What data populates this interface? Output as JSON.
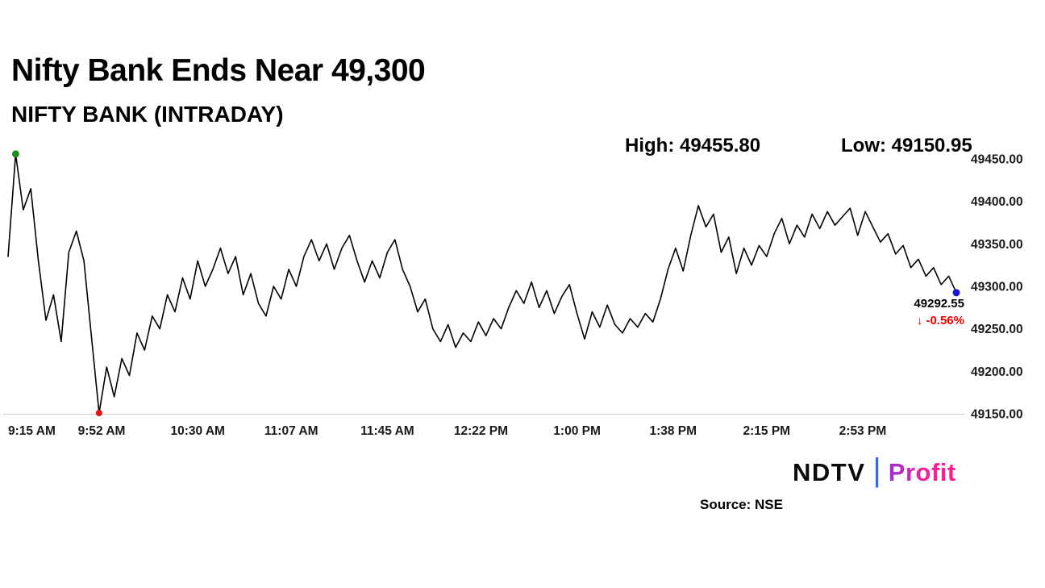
{
  "header": {
    "title": "Nifty Bank Ends Near 49,300",
    "subtitle": "NIFTY BANK (INTRADAY)",
    "high": "High: 49455.80",
    "low": "Low: 49150.95"
  },
  "chart_data": {
    "type": "line",
    "title": "NIFTY BANK (INTRADAY)",
    "series_name": "NIFTY BANK",
    "step_minutes": 3,
    "x_range_minutes": 375,
    "x_start": "9:15 AM",
    "x_end": "3:30 PM",
    "ylim": [
      49150,
      49460
    ],
    "high": 49455.8,
    "low": 49150.95,
    "last": 49292.55,
    "change_pct": -0.56,
    "line_color": "#000000",
    "axis_color": "#c9c9c9",
    "high_marker_color": "#1e8f1e",
    "low_marker_color": "#e31212",
    "last_marker_color": "#1418c8",
    "x_axis": {
      "ticks": [
        {
          "minute": 0,
          "label": "9:15 AM"
        },
        {
          "minute": 37,
          "label": "9:52 AM"
        },
        {
          "minute": 75,
          "label": "10:30 AM"
        },
        {
          "minute": 112,
          "label": "11:07 AM"
        },
        {
          "minute": 150,
          "label": "11:45 AM"
        },
        {
          "minute": 187,
          "label": "12:22 PM"
        },
        {
          "minute": 225,
          "label": "1:00 PM"
        },
        {
          "minute": 263,
          "label": "1:38 PM"
        },
        {
          "minute": 300,
          "label": "2:15 PM"
        },
        {
          "minute": 338,
          "label": "2:53 PM"
        }
      ]
    },
    "y_axis": {
      "ticks": [
        {
          "value": 49450,
          "label": "49450.00"
        },
        {
          "value": 49400,
          "label": "49400.00"
        },
        {
          "value": 49350,
          "label": "49350.00"
        },
        {
          "value": 49300,
          "label": "49300.00"
        },
        {
          "value": 49250,
          "label": "49250.00"
        },
        {
          "value": 49200,
          "label": "49200.00"
        },
        {
          "value": 49150,
          "label": "49150.00"
        }
      ]
    },
    "values": [
      49335,
      49455.8,
      49390,
      49415,
      49330,
      49260,
      49290,
      49235,
      49340,
      49365,
      49330,
      49240,
      49150.95,
      49205,
      49170,
      49215,
      49195,
      49245,
      49225,
      49265,
      49250,
      49290,
      49270,
      49310,
      49285,
      49330,
      49300,
      49320,
      49345,
      49315,
      49335,
      49290,
      49315,
      49280,
      49265,
      49300,
      49285,
      49320,
      49300,
      49335,
      49355,
      49330,
      49350,
      49320,
      49345,
      49360,
      49330,
      49305,
      49330,
      49310,
      49340,
      49355,
      49320,
      49300,
      49270,
      49285,
      49250,
      49235,
      49255,
      49228,
      49245,
      49235,
      49258,
      49242,
      49262,
      49250,
      49275,
      49295,
      49280,
      49305,
      49275,
      49295,
      49268,
      49288,
      49302,
      49268,
      49238,
      49270,
      49252,
      49278,
      49255,
      49245,
      49262,
      49252,
      49268,
      49258,
      49285,
      49320,
      49345,
      49318,
      49360,
      49395,
      49370,
      49385,
      49340,
      49358,
      49315,
      49345,
      49325,
      49348,
      49335,
      49362,
      49380,
      49350,
      49372,
      49358,
      49385,
      49368,
      49388,
      49372,
      49382,
      49392,
      49360,
      49388,
      49370,
      49352,
      49362,
      49338,
      49348,
      49322,
      49332,
      49312,
      49322,
      49302,
      49312,
      49292.55
    ]
  },
  "annotation": {
    "last_price": "49292.55",
    "change": "↓ -0.56%"
  },
  "footer": {
    "source": "Source: NSE"
  },
  "logo": {
    "ndtv": "NDTV",
    "divider": "|",
    "profit": "Profit"
  }
}
